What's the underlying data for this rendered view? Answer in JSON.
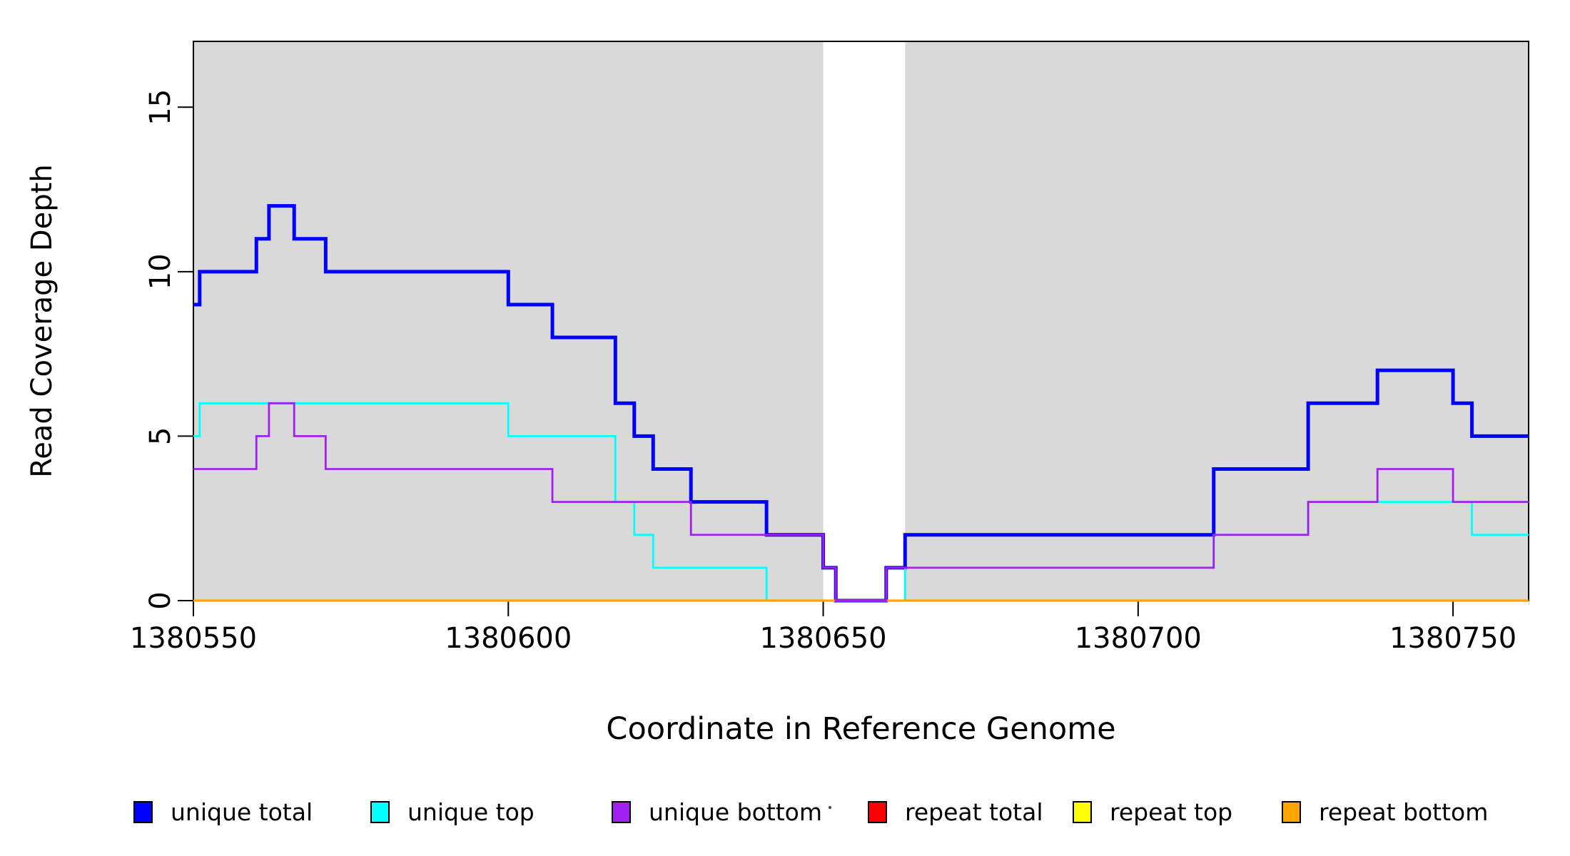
{
  "chart_data": {
    "type": "line",
    "subtype": "step",
    "title": "",
    "xlabel": "Coordinate in Reference Genome",
    "ylabel": "Read Coverage Depth",
    "xlim": [
      1380550,
      1380762
    ],
    "ylim": [
      0,
      17
    ],
    "x_ticks": [
      "1380550",
      "1380600",
      "1380650",
      "1380700",
      "1380750"
    ],
    "x_tick_values": [
      1380550,
      1380600,
      1380650,
      1380700,
      1380750
    ],
    "y_ticks": [
      "0",
      "5",
      "10",
      "15"
    ],
    "y_tick_values": [
      0,
      5,
      10,
      15
    ],
    "grid": false,
    "background_bands": {
      "color": "#D9D9D9",
      "regions": [
        {
          "from": 1380550,
          "to": 1380650
        },
        {
          "from": 1380663,
          "to": 1380762
        }
      ]
    },
    "x_end": 1380762,
    "series": [
      {
        "name": "unique total",
        "color": "#0000FF",
        "line_width": 5,
        "points": [
          {
            "x": 1380550,
            "y": 9
          },
          {
            "x": 1380551,
            "y": 10
          },
          {
            "x": 1380560,
            "y": 11
          },
          {
            "x": 1380562,
            "y": 12
          },
          {
            "x": 1380566,
            "y": 11
          },
          {
            "x": 1380571,
            "y": 10
          },
          {
            "x": 1380600,
            "y": 9
          },
          {
            "x": 1380607,
            "y": 8
          },
          {
            "x": 1380617,
            "y": 6
          },
          {
            "x": 1380620,
            "y": 5
          },
          {
            "x": 1380623,
            "y": 4
          },
          {
            "x": 1380629,
            "y": 3
          },
          {
            "x": 1380641,
            "y": 2
          },
          {
            "x": 1380650,
            "y": 1
          },
          {
            "x": 1380652,
            "y": 0
          },
          {
            "x": 1380660,
            "y": 1
          },
          {
            "x": 1380663,
            "y": 2
          },
          {
            "x": 1380712,
            "y": 4
          },
          {
            "x": 1380727,
            "y": 6
          },
          {
            "x": 1380738,
            "y": 7
          },
          {
            "x": 1380750,
            "y": 6
          },
          {
            "x": 1380753,
            "y": 5
          }
        ]
      },
      {
        "name": "unique top",
        "color": "#00FFFF",
        "line_width": 2.8,
        "points": [
          {
            "x": 1380550,
            "y": 5
          },
          {
            "x": 1380551,
            "y": 6
          },
          {
            "x": 1380600,
            "y": 5
          },
          {
            "x": 1380617,
            "y": 3
          },
          {
            "x": 1380620,
            "y": 2
          },
          {
            "x": 1380623,
            "y": 1
          },
          {
            "x": 1380641,
            "y": 0
          },
          {
            "x": 1380663,
            "y": 1
          },
          {
            "x": 1380712,
            "y": 2
          },
          {
            "x": 1380727,
            "y": 3
          },
          {
            "x": 1380753,
            "y": 2
          }
        ]
      },
      {
        "name": "repeat total",
        "color": "#FF0000",
        "line_width": 2.8,
        "points": [
          {
            "x": 1380550,
            "y": 0
          }
        ]
      },
      {
        "name": "repeat top",
        "color": "#FFFF00",
        "line_width": 2.8,
        "points": [
          {
            "x": 1380550,
            "y": 0
          }
        ]
      },
      {
        "name": "repeat bottom",
        "color": "#FFA500",
        "line_width": 3.2,
        "points": [
          {
            "x": 1380550,
            "y": 0
          }
        ]
      },
      {
        "name": "unique bottom",
        "color": "#A020F0",
        "line_width": 2.8,
        "points": [
          {
            "x": 1380550,
            "y": 4
          },
          {
            "x": 1380560,
            "y": 5
          },
          {
            "x": 1380562,
            "y": 6
          },
          {
            "x": 1380566,
            "y": 5
          },
          {
            "x": 1380571,
            "y": 4
          },
          {
            "x": 1380607,
            "y": 3
          },
          {
            "x": 1380629,
            "y": 2
          },
          {
            "x": 1380650,
            "y": 1
          },
          {
            "x": 1380652,
            "y": 0
          },
          {
            "x": 1380660,
            "y": 1
          },
          {
            "x": 1380712,
            "y": 2
          },
          {
            "x": 1380727,
            "y": 3
          },
          {
            "x": 1380738,
            "y": 4
          },
          {
            "x": 1380750,
            "y": 3
          }
        ]
      }
    ],
    "legend": [
      {
        "label": "unique total",
        "color": "#0000FF"
      },
      {
        "label": "unique top",
        "color": "#00FFFF"
      },
      {
        "label": "unique bottom",
        "color": "#A020F0"
      },
      {
        "label": "repeat total",
        "color": "#FF0000"
      },
      {
        "label": "repeat top",
        "color": "#FFFF00"
      },
      {
        "label": "repeat bottom",
        "color": "#FFA500"
      }
    ],
    "legend_position": "bottom"
  }
}
